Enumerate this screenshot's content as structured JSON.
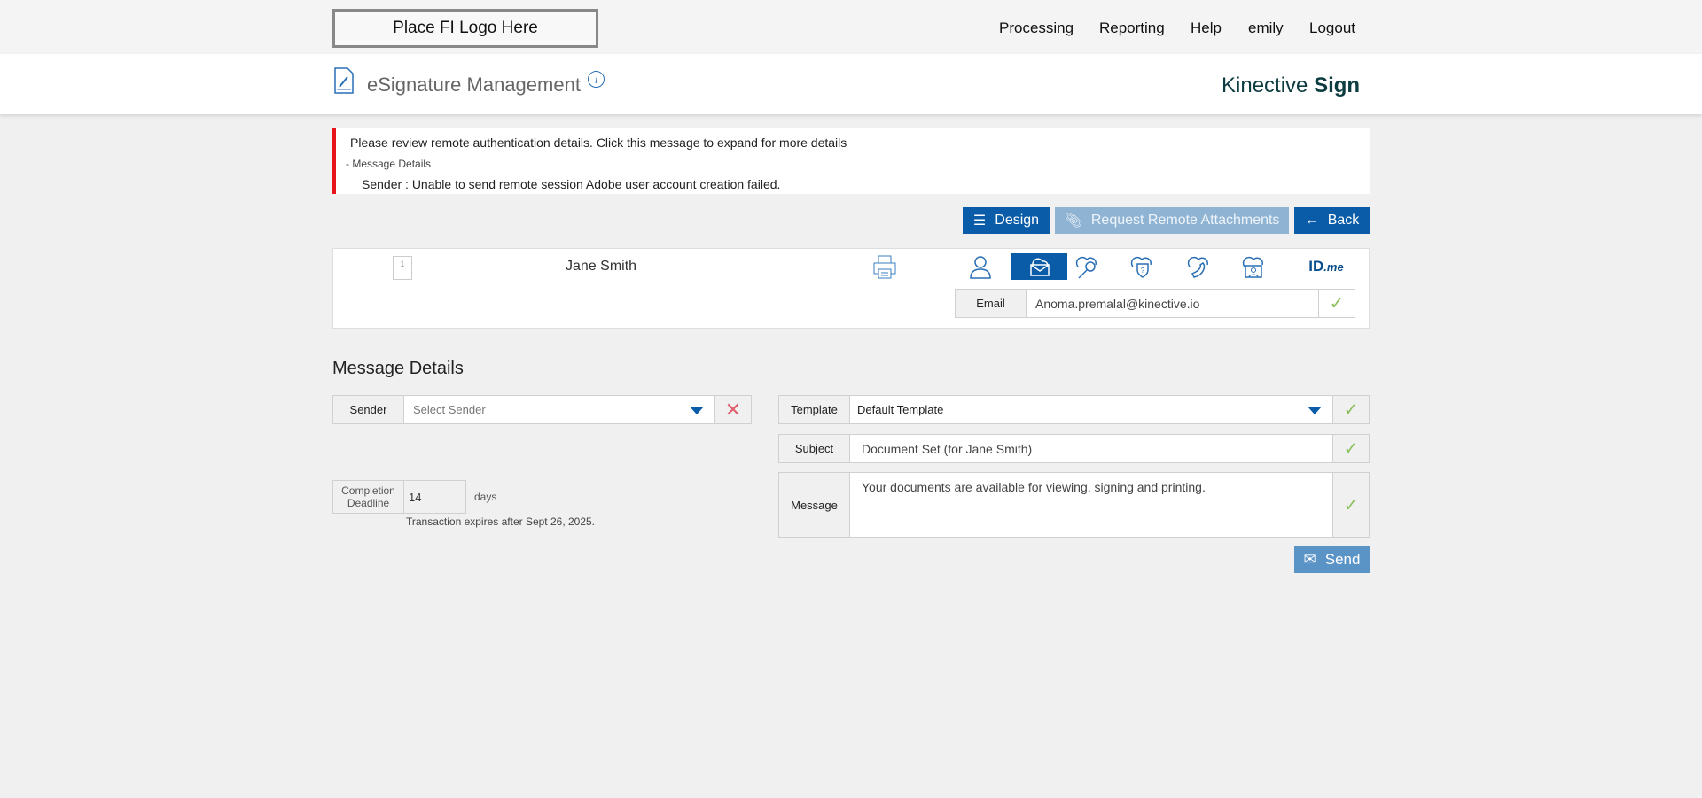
{
  "header": {
    "logo_placeholder": "Place FI Logo Here",
    "nav": [
      "Processing",
      "Reporting",
      "Help",
      "emily",
      "Logout"
    ]
  },
  "titlebar": {
    "title": "eSignature Management",
    "brand_light": "Kinective",
    "brand_bold": "Sign"
  },
  "alert": {
    "message": "Please review remote authentication details. Click this message to expand for more details",
    "details_toggle": "- Message Details",
    "detail": "Sender :  Unable to send remote session Adobe user account creation failed."
  },
  "toolbar": {
    "design": "Design",
    "request_attachments": "Request Remote Attachments",
    "back": "Back"
  },
  "recipient": {
    "page_count": "1",
    "name": "Jane Smith",
    "auth_methods": [
      "person-icon",
      "email-icon",
      "cloud-key-icon",
      "cloud-shield-question-icon",
      "cloud-phone-icon",
      "cloud-video-icon",
      "idme-logo"
    ],
    "selected_method": "email-icon",
    "idme": "ID",
    "idme_suffix": ".me",
    "email_label": "Email",
    "email_value": "Anoma.premalal@kinective.io"
  },
  "message_details": {
    "heading": "Message Details",
    "sender_label": "Sender",
    "sender_placeholder": "Select Sender",
    "completion_label_1": "Completion",
    "completion_label_2": "Deadline",
    "completion_value": "14",
    "days": "days",
    "expiry": "Transaction expires after Sept 26, 2025.",
    "template_label": "Template",
    "template_value": "Default Template",
    "subject_label": "Subject",
    "subject_value": "Document Set (for Jane Smith)",
    "message_label": "Message",
    "message_value": "Your documents are available for viewing, signing and printing.",
    "send": "Send"
  },
  "colors": {
    "primary": "#0a5ca8",
    "disabled": "#8fb3d3",
    "send": "#5a93c6",
    "alert": "#e8141b",
    "check": "#8bbf5a"
  }
}
